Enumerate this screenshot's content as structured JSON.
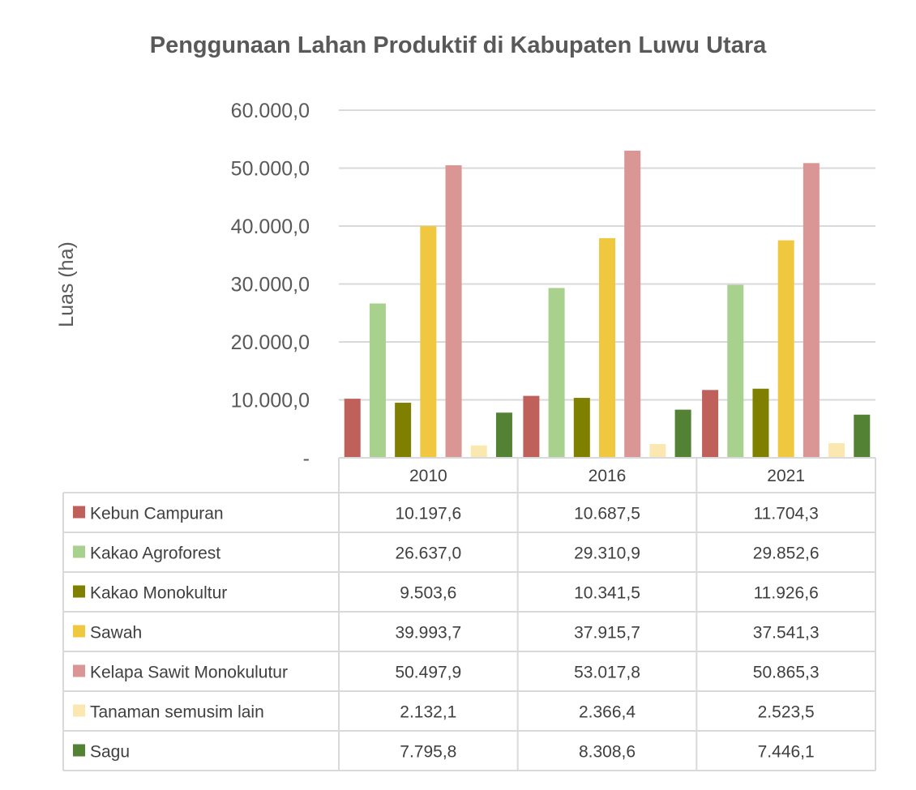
{
  "chart_data": {
    "type": "bar",
    "title": "Penggunaan Lahan Produktif di Kabupaten Luwu Utara",
    "ylabel": "Luas (ha)",
    "xlabel": "",
    "ylim": [
      0,
      60000
    ],
    "yticks": [
      {
        "value": 0,
        "label": "-"
      },
      {
        "value": 10000,
        "label": "10.000,0"
      },
      {
        "value": 20000,
        "label": "20.000,0"
      },
      {
        "value": 30000,
        "label": "30.000,0"
      },
      {
        "value": 40000,
        "label": "40.000,0"
      },
      {
        "value": 50000,
        "label": "50.000,0"
      },
      {
        "value": 60000,
        "label": "60.000,0"
      }
    ],
    "grid": true,
    "legend": "data-table",
    "categories": [
      "2010",
      "2016",
      "2021"
    ],
    "series": [
      {
        "name": "Kebun Campuran",
        "color": "#C0605A",
        "values": [
          10197.6,
          10687.5,
          11704.3
        ],
        "labels": [
          "10.197,6",
          "10.687,5",
          "11.704,3"
        ]
      },
      {
        "name": "Kakao Agroforest",
        "color": "#A9D18E",
        "values": [
          26637.0,
          29310.9,
          29852.6
        ],
        "labels": [
          "26.637,0",
          "29.310,9",
          "29.852,6"
        ]
      },
      {
        "name": "Kakao Monokultur",
        "color": "#7F7F00",
        "values": [
          9503.6,
          10341.5,
          11926.6
        ],
        "labels": [
          "9.503,6",
          "10.341,5",
          "11.926,6"
        ]
      },
      {
        "name": "Sawah",
        "color": "#F0C840",
        "values": [
          39993.7,
          37915.7,
          37541.3
        ],
        "labels": [
          "39.993,7",
          "37.915,7",
          "37.541,3"
        ]
      },
      {
        "name": "Kelapa Sawit Monokulutur",
        "color": "#D99694",
        "values": [
          50497.9,
          53017.8,
          50865.3
        ],
        "labels": [
          "50.497,9",
          "53.017,8",
          "50.865,3"
        ]
      },
      {
        "name": "Tanaman semusim lain",
        "color": "#FBE8B0",
        "values": [
          2132.1,
          2366.4,
          2523.5
        ],
        "labels": [
          "2.132,1",
          "2.366,4",
          "2.523,5"
        ]
      },
      {
        "name": "Sagu",
        "color": "#548235",
        "values": [
          7795.8,
          8308.6,
          7446.1
        ],
        "labels": [
          "7.795,8",
          "8.308,6",
          "7.446,1"
        ]
      }
    ]
  }
}
